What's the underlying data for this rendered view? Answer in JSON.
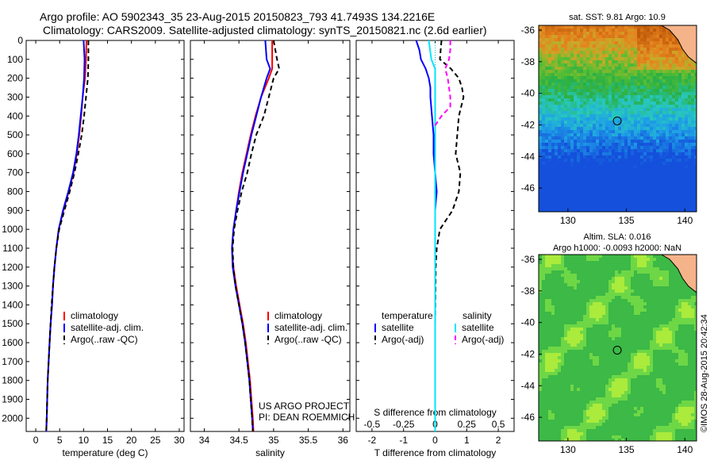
{
  "header": {
    "line1": "Argo profile: AO 5902343_35 23-Aug-2015 20150823_793 41.7493S 134.2216E",
    "line2": "Climatology: CARS2009. Satellite-adjusted climatology: synTS_20150821.nc (2.6d earlier)"
  },
  "credit": "US ARGO PROJECT",
  "pi": "PI: DEAN ROEMMICH",
  "timestamp": "©IMOS 28-Aug-2015 20:42:34",
  "colors": {
    "climatology": "#ff0000",
    "satellite": "#0000ff",
    "argo": "#000000",
    "salinity_satellite": "#00e5ff",
    "salinity_argo": "#ff00ff"
  },
  "map_titles": {
    "sst": "sat. SST: 9.81 Argo: 10.9",
    "sla_line1": "Altim. SLA: 0.016",
    "sla_line2": "Argo h1000: -0.0093 h2000: NaN"
  },
  "chart_data": [
    {
      "type": "line",
      "id": "temperature",
      "xlabel": "temperature (deg C)",
      "ylabel": "",
      "xlim": [
        -2,
        31
      ],
      "xticks": [
        0,
        5,
        10,
        15,
        20,
        25,
        30
      ],
      "ylim": [
        0,
        2070
      ],
      "yticks": [
        0,
        100,
        200,
        300,
        400,
        500,
        600,
        700,
        800,
        900,
        1000,
        1100,
        1200,
        1300,
        1400,
        1500,
        1600,
        1700,
        1800,
        1900,
        2000
      ],
      "legend": [
        "climatology",
        "satellite-adj. clim.",
        "Argo(..raw -QC)"
      ],
      "series": [
        {
          "name": "climatology",
          "depth": [
            0,
            100,
            200,
            300,
            400,
            500,
            600,
            700,
            800,
            900,
            1000,
            1100,
            1200,
            1300,
            1400,
            1500,
            1600,
            1700,
            1800,
            1900,
            2000,
            2070
          ],
          "values": [
            10.6,
            10.5,
            10.3,
            9.8,
            9.5,
            9.1,
            8.6,
            7.9,
            6.9,
            5.8,
            4.8,
            4.3,
            3.9,
            3.6,
            3.4,
            3.1,
            2.9,
            2.7,
            2.5,
            2.4,
            2.3,
            2.2
          ]
        },
        {
          "name": "satellite-adj. clim.",
          "depth": [
            0,
            100,
            200,
            300,
            400,
            500,
            600,
            700,
            800,
            900,
            1000,
            1100,
            1200,
            1300,
            1400,
            1500,
            1600,
            1700,
            1800,
            1900,
            2000,
            2070
          ],
          "values": [
            10.0,
            10.2,
            10.1,
            9.8,
            9.4,
            9.0,
            8.5,
            7.8,
            6.8,
            5.7,
            4.8,
            4.3,
            3.9,
            3.6,
            3.4,
            3.1,
            2.9,
            2.7,
            2.5,
            2.4,
            2.3,
            2.2
          ]
        },
        {
          "name": "Argo(..raw -QC)",
          "depth": [
            0,
            100,
            200,
            300,
            400,
            500,
            600,
            700,
            800,
            900,
            1000,
            1100,
            1200,
            1300,
            1400,
            1500,
            1600,
            1700,
            1800,
            1900,
            2000,
            2070
          ],
          "values": [
            11.0,
            11.0,
            10.9,
            10.5,
            10.1,
            9.6,
            8.9,
            8.1,
            7.1,
            6.0,
            4.9,
            4.3,
            3.9,
            3.6,
            3.3,
            3.1,
            2.9,
            2.7,
            2.5,
            2.4,
            2.3,
            2.2
          ]
        }
      ]
    },
    {
      "type": "line",
      "id": "salinity",
      "xlabel": "salinity",
      "ylabel": "",
      "xlim": [
        33.8,
        36.1
      ],
      "xticks": [
        34,
        34.5,
        35,
        35.5,
        36
      ],
      "ylim": [
        0,
        2070
      ],
      "legend": [
        "climatology",
        "satellite-adj. clim.",
        "Argo(..raw -QC)"
      ],
      "series": [
        {
          "name": "climatology",
          "depth": [
            0,
            100,
            150,
            200,
            300,
            400,
            500,
            600,
            700,
            800,
            900,
            1000,
            1100,
            1200,
            1300,
            1400,
            1500,
            1600,
            1700,
            1800,
            1900,
            2000,
            2070
          ],
          "values": [
            34.98,
            34.98,
            34.98,
            34.93,
            34.82,
            34.74,
            34.67,
            34.61,
            34.55,
            34.5,
            34.46,
            34.42,
            34.4,
            34.42,
            34.46,
            34.51,
            34.56,
            34.6,
            34.63,
            34.66,
            34.68,
            34.7,
            34.71
          ]
        },
        {
          "name": "satellite-adj. clim.",
          "depth": [
            0,
            100,
            150,
            200,
            300,
            400,
            500,
            600,
            700,
            800,
            900,
            1000,
            1100,
            1200,
            1300,
            1400,
            1500,
            1600,
            1700,
            1800,
            1900,
            2000,
            2070
          ],
          "values": [
            34.88,
            34.9,
            34.95,
            34.9,
            34.82,
            34.75,
            34.68,
            34.62,
            34.56,
            34.51,
            34.46,
            34.42,
            34.4,
            34.41,
            34.45,
            34.5,
            34.55,
            34.59,
            34.62,
            34.65,
            34.67,
            34.69,
            34.7
          ]
        },
        {
          "name": "Argo(..raw -QC)",
          "depth": [
            0,
            100,
            150,
            200,
            300,
            400,
            500,
            600,
            700,
            800,
            900,
            1000,
            1100,
            1200,
            1300,
            1400,
            1500,
            1600,
            1700,
            1800,
            1900,
            2000,
            2070
          ],
          "values": [
            35.0,
            35.05,
            35.08,
            35.0,
            34.93,
            34.86,
            34.75,
            34.68,
            34.62,
            34.54,
            34.48,
            34.43,
            34.41,
            34.42,
            34.45,
            34.5,
            34.55,
            34.59,
            34.62,
            34.65,
            34.67,
            34.69,
            34.7
          ]
        }
      ]
    },
    {
      "type": "line",
      "id": "difference",
      "xlabel": "T difference from climatology",
      "x2label": "S difference from climatology",
      "xlim": [
        -2.5,
        2.5
      ],
      "xticks": [
        -2,
        -1,
        0,
        1,
        2
      ],
      "x2lim": [
        -0.625,
        0.625
      ],
      "x2ticks": [
        -0.5,
        -0.25,
        0,
        0.25,
        0.5
      ],
      "ylim": [
        0,
        2070
      ],
      "legend_headings": [
        "temperature",
        "salinity"
      ],
      "legend": [
        "satellite",
        "Argo(-adj)",
        "satellite",
        "Argo(-adj)"
      ],
      "series": [
        {
          "name": "satellite",
          "quantity": "temperature",
          "depth": [
            0,
            50,
            100,
            150,
            200,
            250,
            300,
            400,
            500,
            600,
            700,
            800,
            900,
            1000,
            1200,
            1500,
            2000,
            2070
          ],
          "values": [
            -0.6,
            -0.5,
            -0.45,
            -0.3,
            -0.2,
            -0.15,
            -0.15,
            -0.1,
            -0.05,
            -0.05,
            0,
            0.05,
            0,
            0,
            0,
            0,
            0,
            0
          ]
        },
        {
          "name": "Argo(-adj)",
          "quantity": "temperature",
          "depth": [
            0,
            100,
            150,
            200,
            250,
            300,
            400,
            500,
            600,
            700,
            800,
            900,
            950,
            1000,
            1100,
            1200,
            1500,
            2000,
            2070
          ],
          "values": [
            0.2,
            0.15,
            0.5,
            0.75,
            0.85,
            0.9,
            0.75,
            0.7,
            0.65,
            0.8,
            0.75,
            0.55,
            0.35,
            0.15,
            0.05,
            0.02,
            0,
            0,
            0
          ]
        },
        {
          "name": "satellite",
          "quantity": "salinity",
          "depth": [
            0,
            50,
            100,
            150,
            200,
            300,
            400,
            600,
            800,
            1000,
            1200,
            1500,
            2000,
            2070
          ],
          "values": [
            -0.05,
            -0.04,
            -0.03,
            0.0,
            0.0,
            0.0,
            0.0,
            0.0,
            0.0,
            0.0,
            0.0,
            0.0,
            0.0,
            0.0
          ]
        },
        {
          "name": "Argo(-adj)",
          "quantity": "salinity",
          "depth": [
            0,
            50,
            100,
            150,
            200,
            300,
            350,
            400,
            450
          ],
          "values": [
            0.12,
            0.12,
            0.11,
            0.08,
            0.1,
            0.12,
            0.12,
            0.05,
            0.0
          ]
        }
      ]
    },
    {
      "type": "heatmap",
      "id": "sst_map",
      "title": "sat. SST: 9.81 Argo: 10.9",
      "xlim": [
        127.5,
        141
      ],
      "xticks": [
        130,
        135,
        140
      ],
      "ylim": [
        -47.5,
        -35.7
      ],
      "yticks": [
        -36,
        -38,
        -40,
        -42,
        -44,
        -46
      ],
      "marker": {
        "lon": 134.22,
        "lat": -41.75
      }
    },
    {
      "type": "heatmap",
      "id": "sla_map",
      "title": "Altim. SLA: 0.016 / Argo h1000: -0.0093 h2000: NaN",
      "xlim": [
        127.5,
        141
      ],
      "xticks": [
        130,
        135,
        140
      ],
      "ylim": [
        -47.5,
        -35.7
      ],
      "yticks": [
        -36,
        -38,
        -40,
        -42,
        -44,
        -46
      ],
      "marker": {
        "lon": 134.22,
        "lat": -41.75
      }
    }
  ]
}
